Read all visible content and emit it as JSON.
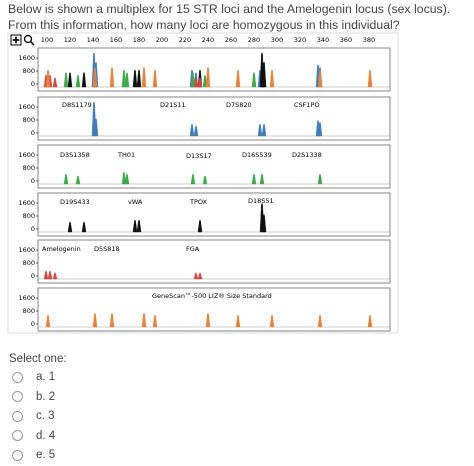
{
  "question": "Below is shown a multiplex for 15 STR loci and the Amelogenin locus (sex locus). From this information, how many loci are homozygous in this individual?",
  "figure": {
    "x_axis_ticks": [
      "100",
      "120",
      "140",
      "160",
      "180",
      "200",
      "220",
      "240",
      "260",
      "280",
      "300",
      "320",
      "340",
      "360",
      "380"
    ],
    "y_axis_ticks": [
      "1600",
      "800",
      "0"
    ],
    "panels": [
      [],
      [
        "D8S1179",
        "D21S11",
        "D7S820",
        "CSF1PO"
      ],
      [
        "D3S1358",
        "TH01",
        "D13S17",
        "D16S539",
        "D2S1338"
      ],
      [
        "D19S433",
        "vWA",
        "TPOX",
        "D18S51"
      ],
      [
        "Amelogenin",
        "D5S818",
        "FGA"
      ],
      [
        "GeneScan™-500 LIZ® Size Standard"
      ]
    ]
  },
  "answers": {
    "prompt": "Select one:",
    "options": [
      "a. 1",
      "b. 2",
      "c. 3",
      "d. 4",
      "e. 5"
    ]
  }
}
